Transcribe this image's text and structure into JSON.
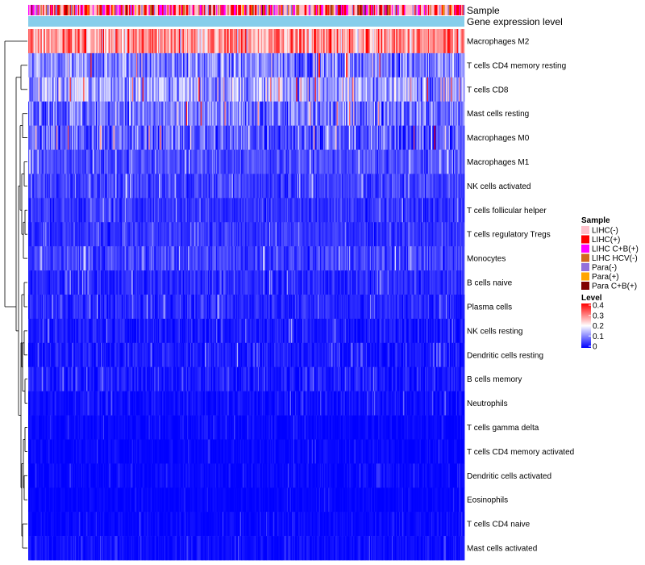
{
  "chart_data": {
    "type": "heatmap",
    "annotation_rows": [
      "Sample",
      "Gene expression level"
    ],
    "rows": [
      {
        "name": "Macrophages M2",
        "mean": 0.28,
        "spread": 0.1
      },
      {
        "name": "T cells CD4 memory resting",
        "mean": 0.1,
        "spread": 0.08
      },
      {
        "name": "T cells CD8",
        "mean": 0.13,
        "spread": 0.09
      },
      {
        "name": "Mast cells resting",
        "mean": 0.09,
        "spread": 0.08
      },
      {
        "name": "Macrophages M0",
        "mean": 0.07,
        "spread": 0.08
      },
      {
        "name": "Macrophages M1",
        "mean": 0.06,
        "spread": 0.04
      },
      {
        "name": "NK cells activated",
        "mean": 0.05,
        "spread": 0.04
      },
      {
        "name": "T cells follicular helper",
        "mean": 0.04,
        "spread": 0.03
      },
      {
        "name": "T cells regulatory  Tregs",
        "mean": 0.04,
        "spread": 0.03
      },
      {
        "name": "Monocytes",
        "mean": 0.05,
        "spread": 0.04
      },
      {
        "name": "B cells naive",
        "mean": 0.03,
        "spread": 0.03
      },
      {
        "name": "Plasma cells",
        "mean": 0.03,
        "spread": 0.03
      },
      {
        "name": "NK cells resting",
        "mean": 0.02,
        "spread": 0.03
      },
      {
        "name": "Dendritic cells resting",
        "mean": 0.02,
        "spread": 0.03
      },
      {
        "name": "B cells memory",
        "mean": 0.02,
        "spread": 0.03
      },
      {
        "name": "Neutrophils",
        "mean": 0.01,
        "spread": 0.02
      },
      {
        "name": "T cells gamma delta",
        "mean": 0.005,
        "spread": 0.015
      },
      {
        "name": "T cells CD4 memory activated",
        "mean": 0.005,
        "spread": 0.015
      },
      {
        "name": "Dendritic cells activated",
        "mean": 0.005,
        "spread": 0.015
      },
      {
        "name": "Eosinophils",
        "mean": 0.003,
        "spread": 0.01
      },
      {
        "name": "T cells CD4 naive",
        "mean": 0.005,
        "spread": 0.015
      },
      {
        "name": "Mast cells activated",
        "mean": 0.01,
        "spread": 0.02
      }
    ],
    "n_samples": 420,
    "value_range": [
      0,
      0.4
    ],
    "color_scale": [
      "#0000ff",
      "#ffffff",
      "#ff0000"
    ],
    "sample_legend": {
      "title": "Sample",
      "items": [
        {
          "label": "LIHC(-)",
          "color": "#ffc0cb"
        },
        {
          "label": "LIHC(+)",
          "color": "#ff0000"
        },
        {
          "label": "LIHC C+B(+)",
          "color": "#ff00ff"
        },
        {
          "label": "LIHC HCV(-)",
          "color": "#d2691e"
        },
        {
          "label": "Para(-)",
          "color": "#9370db"
        },
        {
          "label": "Para(+)",
          "color": "#ffa500"
        },
        {
          "label": "Para C+B(+)",
          "color": "#800000"
        }
      ]
    },
    "level_legend": {
      "title": "Level",
      "ticks": [
        "0.4",
        "0.3",
        "0.2",
        "0.1",
        "0"
      ]
    },
    "gene_expression_color": "#87ceeb"
  }
}
